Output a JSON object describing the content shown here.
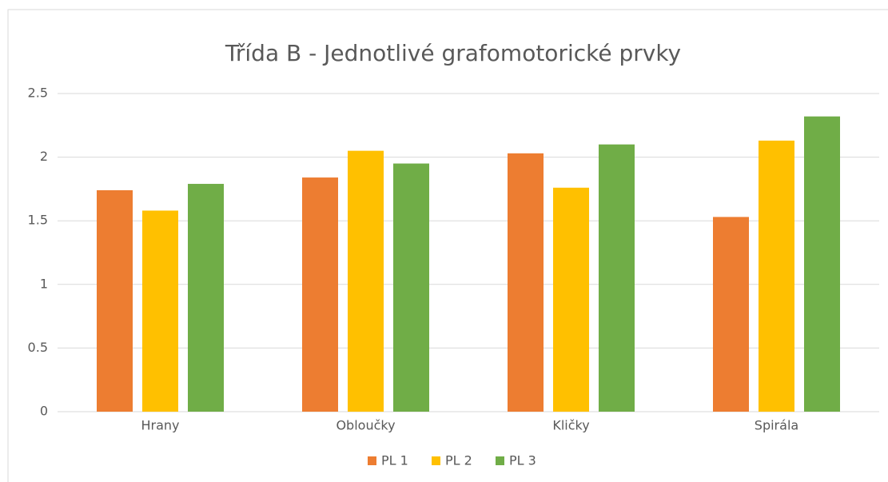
{
  "chart_data": {
    "type": "bar",
    "title": "Třída B - Jednotlivé grafomotorické prvky",
    "categories": [
      "Hrany",
      "Obloučky",
      "Kličky",
      "Spirála"
    ],
    "series": [
      {
        "name": "PL 1",
        "color": "#ed7d31",
        "values": [
          1.74,
          1.84,
          2.03,
          1.53
        ]
      },
      {
        "name": "PL 2",
        "color": "#ffc000",
        "values": [
          1.58,
          2.05,
          1.76,
          2.13
        ]
      },
      {
        "name": "PL 3",
        "color": "#70ad47",
        "values": [
          1.79,
          1.95,
          2.1,
          2.32
        ]
      }
    ],
    "ylim": [
      0,
      2.5
    ],
    "yticks": [
      0,
      0.5,
      1,
      1.5,
      2,
      2.5
    ],
    "grid": true,
    "legend": "bottom"
  }
}
